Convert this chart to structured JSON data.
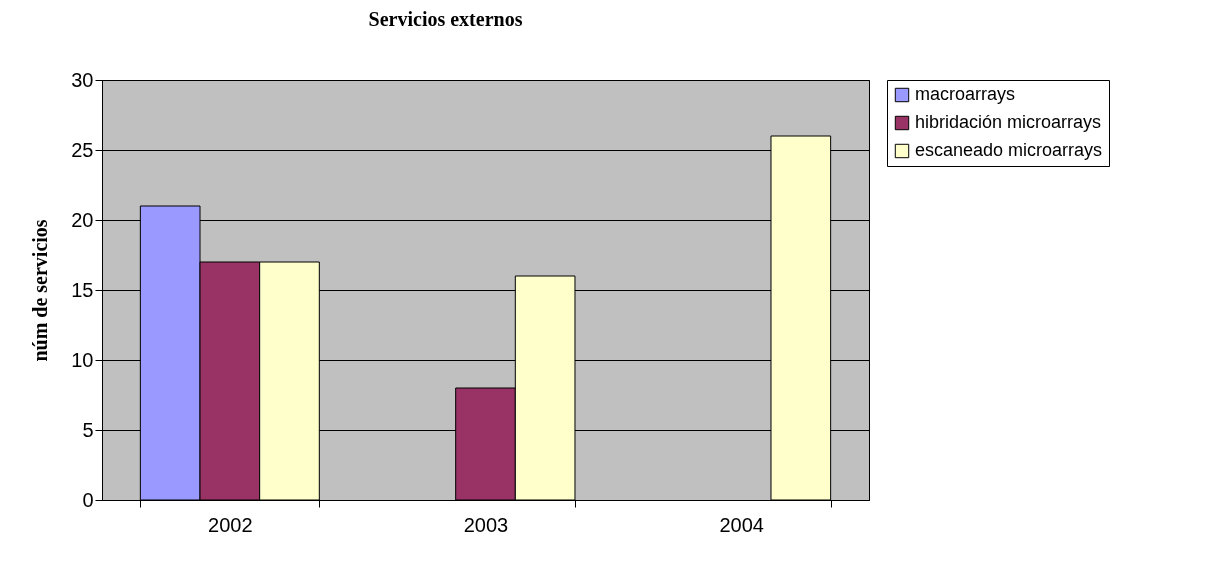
{
  "chart_data": {
    "type": "bar",
    "title": "Servicios externos",
    "ylabel": "núm de servicios",
    "categories": [
      "2002",
      "2003",
      "2004"
    ],
    "series": [
      {
        "name": "macroarrays",
        "color": "#9999ff",
        "values": [
          21,
          null,
          null
        ]
      },
      {
        "name": "hibridación microarrays",
        "color": "#993366",
        "values": [
          17,
          8,
          null
        ]
      },
      {
        "name": "escaneado microarrays",
        "color": "#ffffcc",
        "values": [
          17,
          16,
          26
        ]
      }
    ],
    "ylim": [
      0,
      30
    ],
    "yticks": [
      0,
      5,
      10,
      15,
      20,
      25,
      30
    ],
    "grid": "y",
    "legend": "right"
  }
}
